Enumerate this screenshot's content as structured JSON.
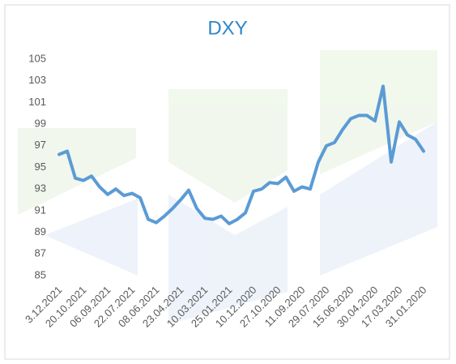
{
  "chart_data": {
    "type": "line",
    "title": "DXY",
    "categories": [
      "3.12.2021",
      null,
      null,
      "20.10.2021",
      null,
      null,
      "06.09.2021",
      null,
      null,
      "22.07.2021",
      null,
      null,
      "08.06.2021",
      null,
      null,
      "23.04.2021",
      null,
      null,
      "10.03.2021",
      null,
      null,
      "25.01.2021",
      null,
      null,
      "10.12.2020",
      null,
      null,
      "27.10.2020",
      null,
      null,
      "11.09.2020",
      null,
      null,
      "29.07.2020",
      null,
      null,
      "15.06.2020",
      null,
      null,
      "30.04.2020",
      null,
      null,
      "17.03.2020",
      null,
      null,
      "31.01.2020"
    ],
    "series": [
      {
        "name": "DXY",
        "color": "#5b9bd5",
        "values": [
          96.2,
          96.5,
          94.0,
          93.8,
          94.2,
          93.2,
          92.5,
          93.0,
          92.4,
          92.6,
          92.2,
          90.2,
          89.9,
          90.5,
          91.2,
          92.0,
          92.9,
          91.2,
          90.3,
          90.2,
          90.5,
          89.8,
          90.2,
          90.8,
          92.8,
          93.0,
          93.6,
          93.5,
          94.1,
          92.8,
          93.2,
          93.0,
          95.5,
          97.0,
          97.3,
          98.5,
          99.5,
          99.8,
          99.8,
          99.3,
          102.5,
          95.5,
          99.2,
          98.0,
          97.6,
          96.5
        ]
      }
    ],
    "ylim": [
      85,
      105
    ],
    "yticks": [
      85,
      87,
      89,
      91,
      93,
      95,
      97,
      99,
      101,
      103,
      105
    ],
    "grid": false
  }
}
